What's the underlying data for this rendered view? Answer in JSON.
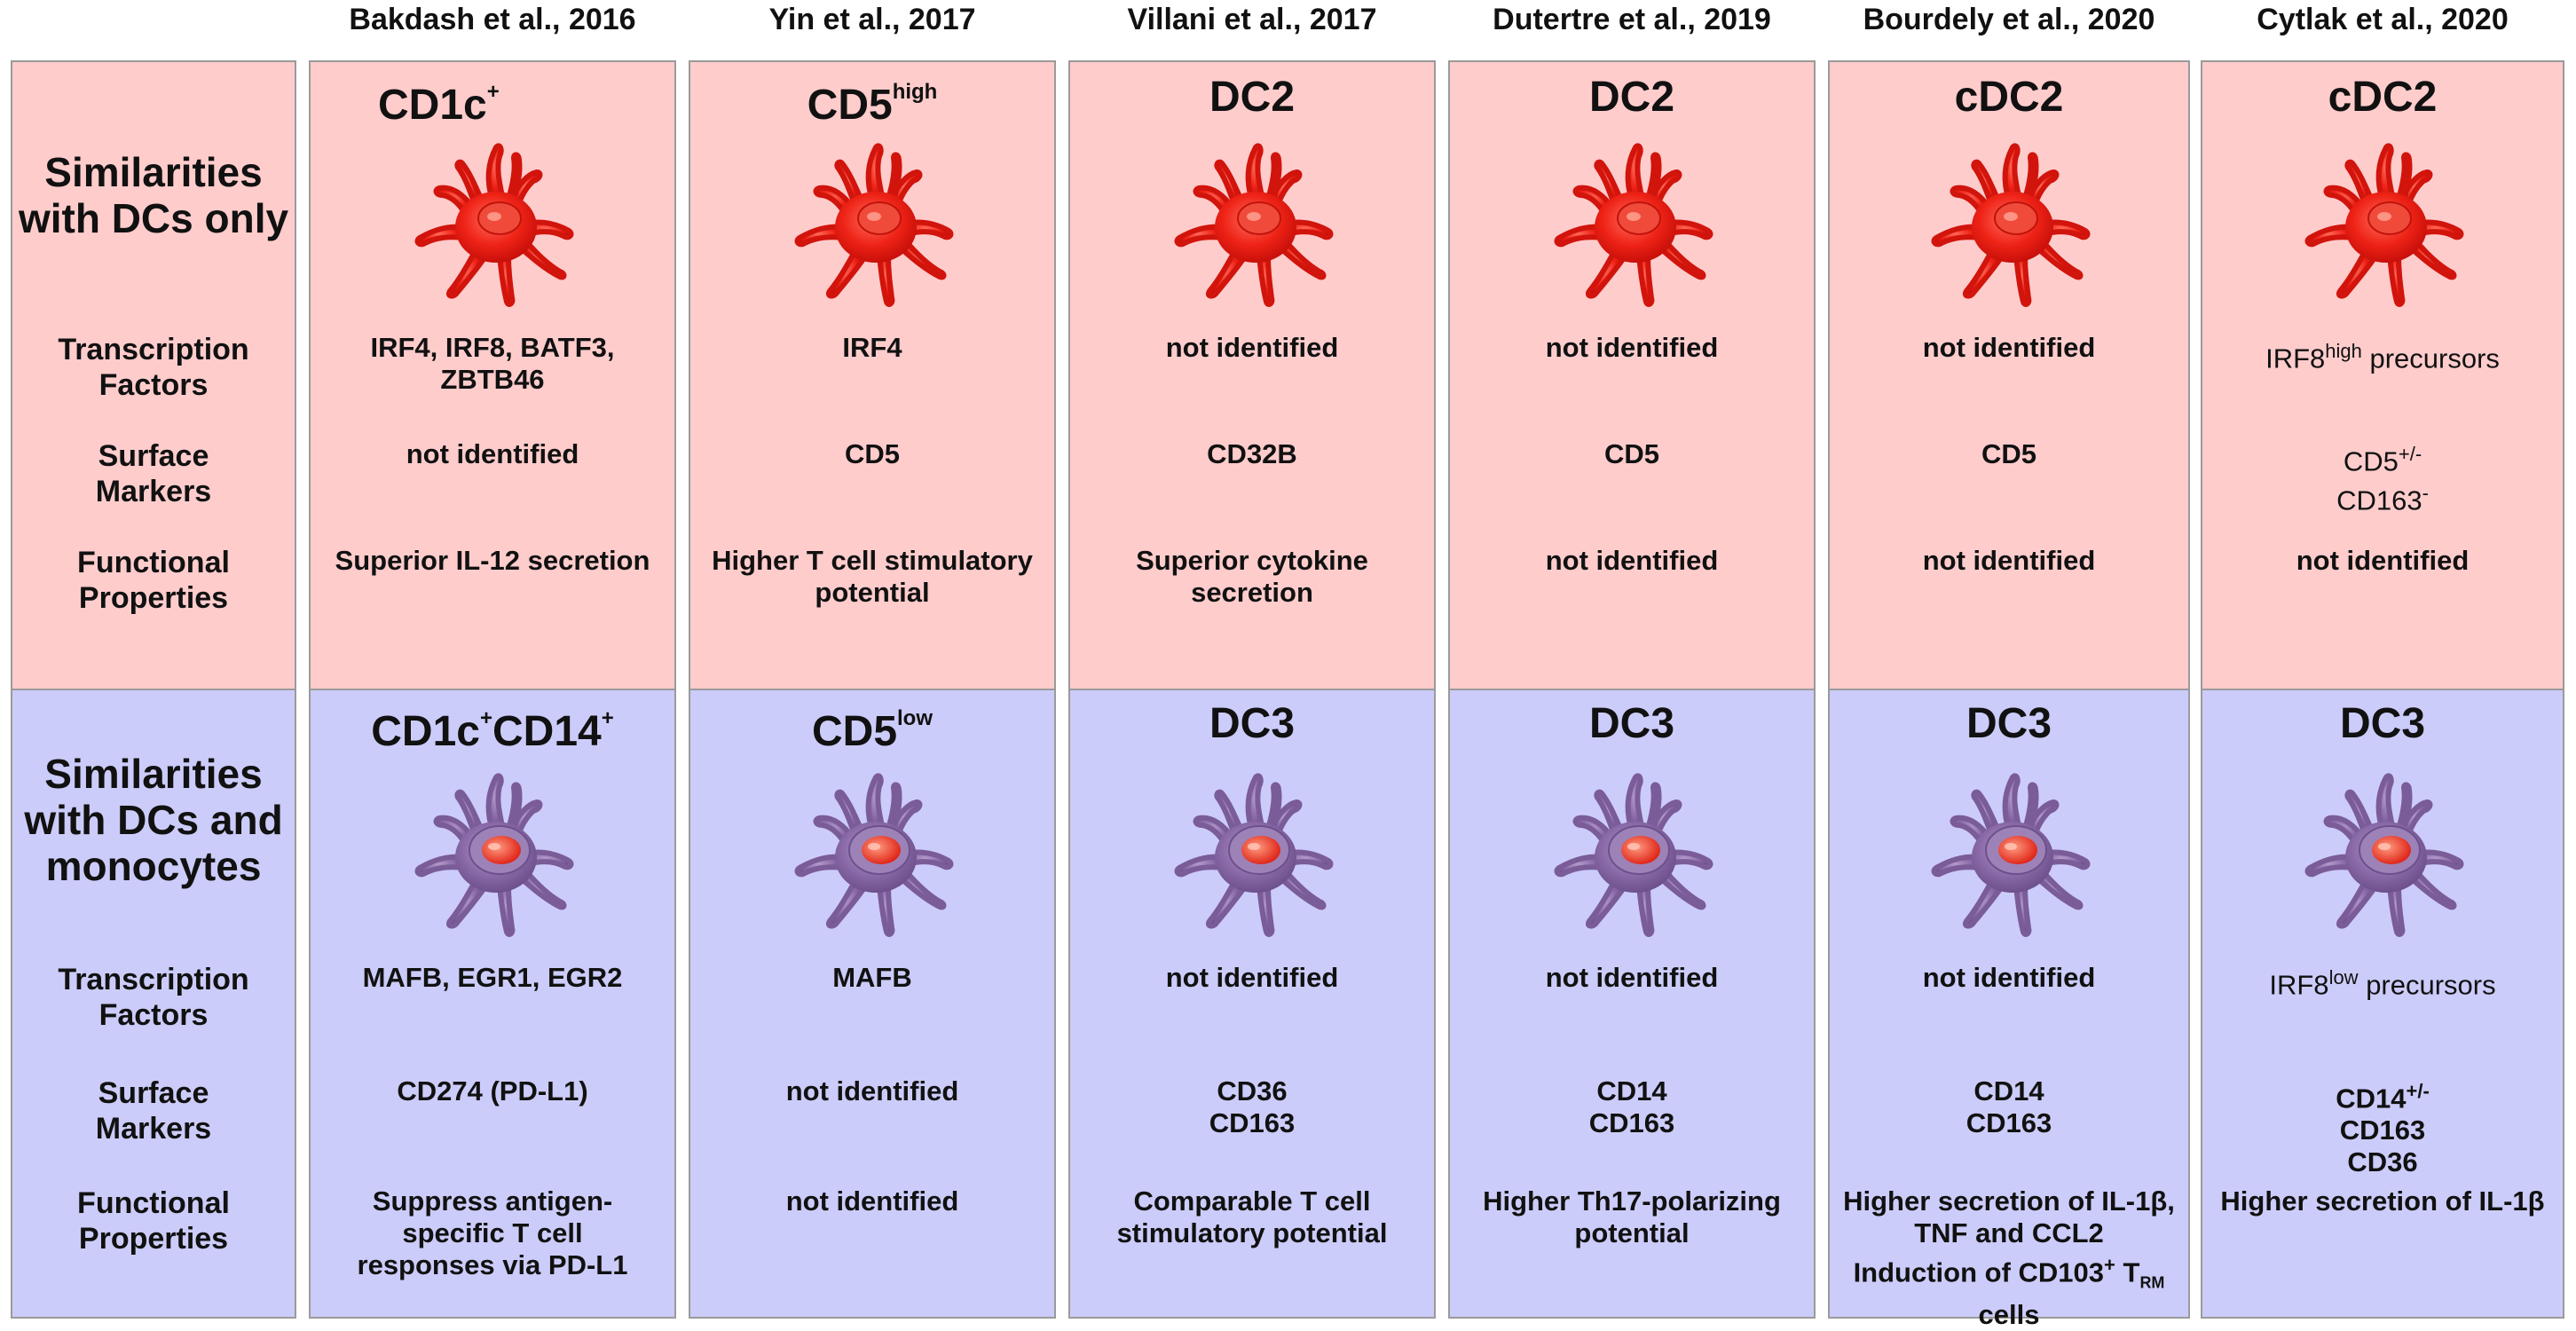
{
  "headers": [
    "Bakdash et al., 2016",
    "Yin et al., 2017",
    "Villani et al., 2017",
    "Dutertre et al., 2019",
    "Bourdely et al., 2020",
    "Cytlak et al., 2020"
  ],
  "row_labels": {
    "similar_dc_line1": "Similarities",
    "similar_dc_line2": "with DCs only",
    "similar_mono_line1": "Similarities",
    "similar_mono_line2": "with DCs and",
    "similar_mono_line3": "monocytes",
    "tf_line1": "Transcription",
    "tf_line2": "Factors",
    "sm_line1": "Surface",
    "sm_line2": "Markers",
    "fp_line1": "Functional",
    "fp_line2": "Properties"
  },
  "top": {
    "subtypes": [
      {
        "main": "CD1c",
        "sup": "+"
      },
      {
        "main": "CD5",
        "sup": "high"
      },
      {
        "main": "DC2",
        "sup": ""
      },
      {
        "main": "DC2",
        "sup": ""
      },
      {
        "main": "cDC2",
        "sup": ""
      },
      {
        "main": "cDC2",
        "sup": ""
      }
    ],
    "tf": [
      [
        "IRF4, IRF8, BATF3,",
        "ZBTB46"
      ],
      [
        "IRF4"
      ],
      [
        "not identified"
      ],
      [
        "not identified"
      ],
      [
        "not identified"
      ],
      []
    ],
    "tf_cytlak": {
      "pre": "IRF8",
      "sup": "high",
      "post": " precursors"
    },
    "sm": [
      [
        "not identified"
      ],
      [
        "CD5"
      ],
      [
        "CD32B"
      ],
      [
        "CD5"
      ],
      [
        "CD5"
      ],
      []
    ],
    "sm_cytlak": {
      "l1": "CD5",
      "l1sup": "+/-",
      "l2": "CD163",
      "l2sup": "-"
    },
    "fp": [
      [
        "Superior IL-12 secretion"
      ],
      [
        "Higher T cell stimulatory",
        "potential"
      ],
      [
        "Superior cytokine",
        "secretion"
      ],
      [
        "not identified"
      ],
      [
        "not identified"
      ],
      [
        "not identified"
      ]
    ]
  },
  "bottom": {
    "subtypes": [
      {
        "main": "CD1c",
        "sup": "+",
        "main2": "CD14",
        "sup2": "+"
      },
      {
        "main": "CD5",
        "sup": "low"
      },
      {
        "main": "DC3",
        "sup": ""
      },
      {
        "main": "DC3",
        "sup": ""
      },
      {
        "main": "DC3",
        "sup": ""
      },
      {
        "main": "DC3",
        "sup": ""
      }
    ],
    "tf": [
      [
        "MAFB, EGR1, EGR2"
      ],
      [
        "MAFB"
      ],
      [
        "not identified"
      ],
      [
        "not identified"
      ],
      [
        "not identified"
      ],
      []
    ],
    "tf_cytlak": {
      "pre": "IRF8",
      "sup": "low",
      "post": " precursors"
    },
    "sm": [
      [
        "CD274 (PD-L1)"
      ],
      [
        "not identified"
      ],
      [
        "CD36",
        "CD163"
      ],
      [
        "CD14",
        "CD163"
      ],
      [
        "CD14",
        "CD163"
      ],
      []
    ],
    "sm_cytlak": {
      "l1": "CD14",
      "l1sup": "+/-",
      "l2": "CD163",
      "l3": "CD36"
    },
    "fp": [
      [
        "Suppress antigen-",
        "specific T cell",
        "responses via PD-L1"
      ],
      [
        "not identified"
      ],
      [
        "Comparable T cell",
        "stimulatory potential"
      ],
      [
        "Higher Th17-polarizing",
        "potential"
      ],
      [],
      [
        "Higher secretion of IL-1β"
      ]
    ],
    "fp_bourdely": {
      "l1": "Higher secretion of IL-1β,",
      "l2": "TNF  and CCL2",
      "l3pre": "Induction of CD103",
      "l3sup": "+",
      "l3mid": " T",
      "l3sub": "RM",
      "l4": "cells"
    }
  },
  "colors": {
    "pink": "#ffcccc",
    "blue": "#ccccfa",
    "dc_red": "#e81c14",
    "dc_purple": "#8a6aa8",
    "border": "#9a9a9a"
  },
  "icons": {
    "dc2": "red-dendritic-cell-icon",
    "dc3": "purple-dendritic-cell-icon"
  }
}
